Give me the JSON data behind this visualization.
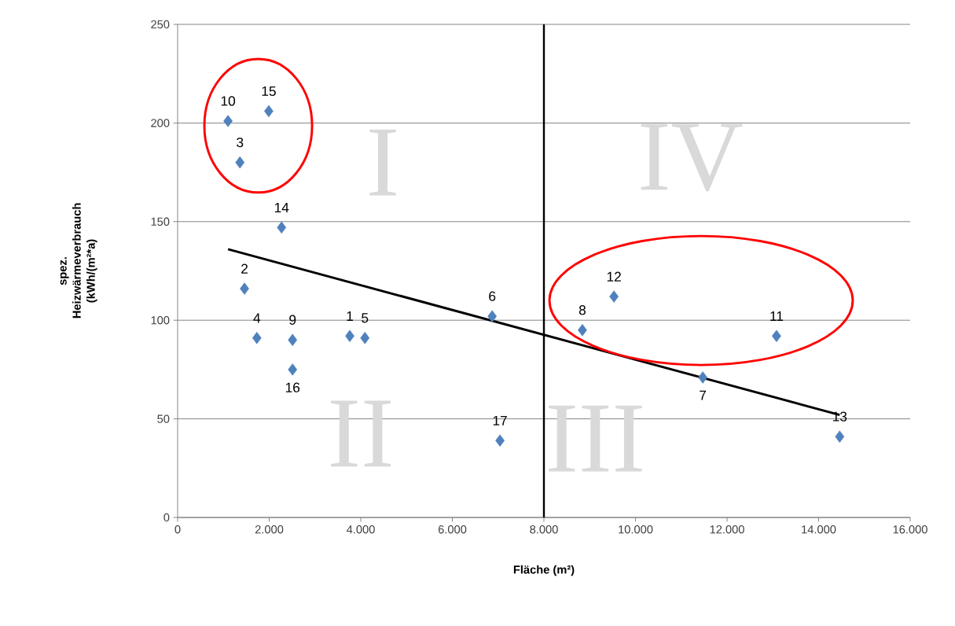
{
  "chart_data": {
    "type": "scatter",
    "xlabel": "Fläche  (m²)",
    "ylabel": "spez. Heizwärmeverbrauch (kWh/(m²*a)",
    "xlim": [
      0,
      16000
    ],
    "ylim": [
      0,
      250
    ],
    "xticks": [
      0,
      {
        "value": 2000,
        "label": "2.000"
      },
      {
        "value": 4000,
        "label": "4.000"
      },
      {
        "value": 6000,
        "label": "6.000"
      },
      {
        "value": 8000,
        "label": "8.000"
      },
      {
        "value": 10000,
        "label": "10.000"
      },
      {
        "value": 12000,
        "label": "12.000"
      },
      {
        "value": 14000,
        "label": "14.000"
      },
      {
        "value": 16000,
        "label": "16.000"
      }
    ],
    "yticks": [
      0,
      50,
      100,
      150,
      200,
      250
    ],
    "grid": "y",
    "series": [
      {
        "color": "#4f81bd",
        "marker": "diamond",
        "x": [
          3760,
          1460,
          1360,
          1730,
          4090,
          6870,
          11470,
          8840,
          2510,
          1100,
          13080,
          9530,
          14460,
          2270,
          1990,
          2510,
          7040
        ],
        "values": [
          92,
          116,
          180,
          91,
          91,
          102,
          71,
          95,
          90,
          201,
          92,
          112,
          41,
          147,
          206,
          75,
          39
        ]
      },
      {
        "type": "line",
        "color": "#000000",
        "marker": "none",
        "line_style": "solid",
        "x": [
          1100,
          14460
        ],
        "values": [
          136,
          52
        ]
      }
    ],
    "ref_lines": [
      {
        "axis": "x",
        "value": 8000,
        "color": "#000000"
      }
    ],
    "annotations": [
      {
        "text": "1",
        "x": 3760,
        "y": 92
      },
      {
        "text": "2",
        "x": 1460,
        "y": 116
      },
      {
        "text": "3",
        "x": 1360,
        "y": 180
      },
      {
        "text": "4",
        "x": 1730,
        "y": 91
      },
      {
        "text": "5",
        "x": 4090,
        "y": 91
      },
      {
        "text": "6",
        "x": 6870,
        "y": 102
      },
      {
        "text": "7",
        "x": 11470,
        "y": 71
      },
      {
        "text": "8",
        "x": 8840,
        "y": 95
      },
      {
        "text": "9",
        "x": 2510,
        "y": 90
      },
      {
        "text": "10",
        "x": 1100,
        "y": 201
      },
      {
        "text": "11",
        "x": 13080,
        "y": 92
      },
      {
        "text": "12",
        "x": 9530,
        "y": 112
      },
      {
        "text": "13",
        "x": 14460,
        "y": 41
      },
      {
        "text": "14",
        "x": 2270,
        "y": 147
      },
      {
        "text": "15",
        "x": 1990,
        "y": 206
      },
      {
        "text": "16",
        "x": 2510,
        "y": 75
      },
      {
        "text": "17",
        "x": 7040,
        "y": 39
      },
      "I",
      "II",
      "III",
      "IV"
    ]
  }
}
